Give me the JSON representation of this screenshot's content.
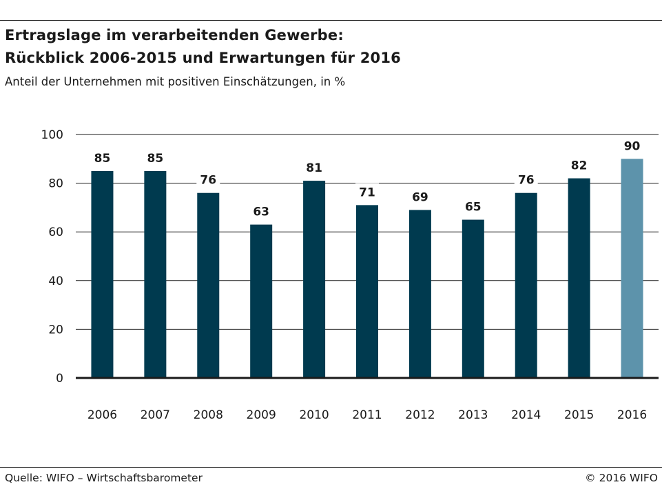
{
  "header": {
    "title_line1": "Ertragslage im verarbeitenden Gewerbe:",
    "title_line2": "Rückblick 2006-2015 und Erwartungen für 2016",
    "subtitle": "Anteil der Unternehmen mit positiven Einschätzungen, in %"
  },
  "footer": {
    "source": "Quelle: WIFO – Wirtschaftsbarometer",
    "copyright": "© 2016 WIFO"
  },
  "chart_data": {
    "type": "bar",
    "title": "Ertragslage im verarbeitenden Gewerbe: Rückblick 2006-2015 und Erwartungen für 2016",
    "subtitle": "Anteil der Unternehmen mit positiven Einschätzungen, in %",
    "xlabel": "",
    "ylabel": "",
    "categories": [
      "2006",
      "2007",
      "2008",
      "2009",
      "2010",
      "2011",
      "2012",
      "2013",
      "2014",
      "2015",
      "2016"
    ],
    "values": [
      85,
      85,
      76,
      63,
      81,
      71,
      69,
      65,
      76,
      82,
      90
    ],
    "ylim": [
      0,
      100
    ],
    "yticks": [
      0,
      20,
      40,
      60,
      80,
      100
    ],
    "grid": true,
    "legend": "none",
    "data_labels": true,
    "colors": {
      "actual": "#003a4f",
      "expectation": "#5d93ab",
      "grid": "#1a1a1a"
    },
    "highlight_category": "2016"
  }
}
